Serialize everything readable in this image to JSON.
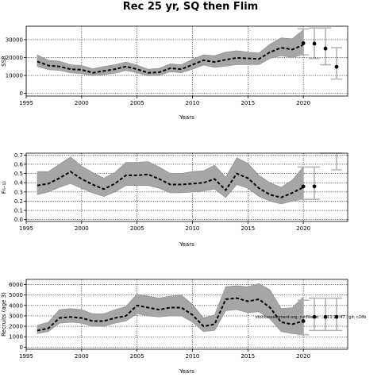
{
  "title": "Rec 25 yr, SQ then Flim",
  "chart_data": [
    {
      "type": "line",
      "ylabel": "SSB",
      "xlabel": "Years",
      "xlim": [
        1995,
        2024
      ],
      "ylim": [
        -1500,
        37500
      ],
      "xticks": [
        1995,
        2000,
        2005,
        2010,
        2015,
        2020
      ],
      "yticks": [
        0,
        10000,
        20000,
        30000
      ],
      "grid": true,
      "x": [
        1996,
        1997,
        1998,
        1999,
        2000,
        2001,
        2002,
        2003,
        2004,
        2005,
        2006,
        2007,
        2008,
        2009,
        2010,
        2011,
        2012,
        2013,
        2014,
        2015,
        2016,
        2017,
        2018,
        2019,
        2020
      ],
      "series": [
        {
          "role": "estimate",
          "values": [
            17800,
            15500,
            15000,
            13500,
            13200,
            11500,
            12500,
            13500,
            15000,
            13500,
            11500,
            11800,
            14000,
            13500,
            16000,
            18500,
            17500,
            18800,
            19800,
            19500,
            19200,
            23000,
            25500,
            24500,
            27000
          ]
        },
        {
          "role": "upper",
          "values": [
            21500,
            18500,
            18000,
            16000,
            15500,
            13800,
            15000,
            16000,
            17500,
            15800,
            13500,
            14000,
            16500,
            16000,
            19000,
            21500,
            21000,
            23000,
            23800,
            23000,
            22500,
            27500,
            31000,
            30500,
            35500
          ]
        },
        {
          "role": "lower",
          "values": [
            15000,
            13200,
            12800,
            11500,
            11000,
            9800,
            10500,
            11200,
            12800,
            11500,
            9800,
            10000,
            12000,
            11500,
            13500,
            15800,
            14500,
            15200,
            16000,
            16000,
            16000,
            19500,
            21000,
            20000,
            21500
          ]
        }
      ],
      "projection": [
        {
          "x": 2020,
          "y": 28000,
          "lo": 21500,
          "hi": 36000
        },
        {
          "x": 2021,
          "y": 27800,
          "lo": 19500,
          "hi": 36500
        },
        {
          "x": 2022,
          "y": 25000,
          "lo": 16000,
          "hi": 36500
        },
        {
          "x": 2023,
          "y": 14800,
          "lo": 8000,
          "hi": 25500
        }
      ]
    },
    {
      "type": "line",
      "ylabel": "F₆₋₁₀",
      "xlabel": "Years",
      "xlim": [
        1995,
        2024
      ],
      "ylim": [
        -0.02,
        0.72
      ],
      "xticks": [
        1995,
        2000,
        2005,
        2010,
        2015,
        2020
      ],
      "yticks": [
        0.0,
        0.1,
        0.2,
        0.3,
        0.4,
        0.5,
        0.6,
        0.7
      ],
      "grid": true,
      "x": [
        1996,
        1997,
        1998,
        1999,
        2000,
        2001,
        2002,
        2003,
        2004,
        2005,
        2006,
        2007,
        2008,
        2009,
        2010,
        2011,
        2012,
        2013,
        2014,
        2015,
        2016,
        2017,
        2018,
        2019,
        2020
      ],
      "series": [
        {
          "role": "estimate",
          "values": [
            0.37,
            0.39,
            0.45,
            0.52,
            0.44,
            0.38,
            0.33,
            0.39,
            0.48,
            0.48,
            0.49,
            0.44,
            0.38,
            0.38,
            0.39,
            0.4,
            0.44,
            0.32,
            0.5,
            0.45,
            0.34,
            0.27,
            0.24,
            0.29,
            0.35
          ]
        },
        {
          "role": "upper",
          "values": [
            0.52,
            0.52,
            0.6,
            0.68,
            0.58,
            0.51,
            0.45,
            0.51,
            0.62,
            0.62,
            0.63,
            0.57,
            0.5,
            0.5,
            0.52,
            0.53,
            0.59,
            0.46,
            0.67,
            0.61,
            0.48,
            0.4,
            0.35,
            0.43,
            0.57
          ]
        },
        {
          "role": "lower",
          "values": [
            0.27,
            0.3,
            0.35,
            0.39,
            0.34,
            0.29,
            0.25,
            0.3,
            0.37,
            0.37,
            0.37,
            0.34,
            0.29,
            0.29,
            0.3,
            0.31,
            0.33,
            0.24,
            0.38,
            0.34,
            0.25,
            0.2,
            0.17,
            0.2,
            0.22
          ]
        }
      ],
      "projection": [
        {
          "x": 2020,
          "y": 0.36,
          "lo": 0.22,
          "hi": 0.57
        },
        {
          "x": 2021,
          "y": 0.36,
          "lo": 0.22,
          "hi": 0.57
        },
        {
          "x": 2022,
          "y": null,
          "lo": null,
          "hi": 0.72
        },
        {
          "x": 2023,
          "y": null,
          "lo": 0.54,
          "hi": 0.72
        }
      ]
    },
    {
      "type": "line",
      "ylabel": "Recruits (age 3)",
      "xlabel": "Years",
      "xlim": [
        1995,
        2024
      ],
      "ylim": [
        -200,
        6500
      ],
      "xticks": [
        1995,
        2000,
        2005,
        2010,
        2015,
        2020
      ],
      "yticks": [
        0,
        1000,
        2000,
        3000,
        4000,
        5000,
        6000
      ],
      "grid": true,
      "x": [
        1996,
        1997,
        1998,
        1999,
        2000,
        2001,
        2002,
        2003,
        2004,
        2005,
        2006,
        2007,
        2008,
        2009,
        2010,
        2011,
        2012,
        2013,
        2014,
        2015,
        2016,
        2017,
        2018,
        2019,
        2020
      ],
      "series": [
        {
          "role": "estimate",
          "values": [
            1600,
            1800,
            2800,
            2900,
            2800,
            2500,
            2500,
            2800,
            3000,
            4000,
            3800,
            3600,
            3800,
            3800,
            3100,
            2000,
            2200,
            4600,
            4700,
            4400,
            4600,
            3800,
            2400,
            2200,
            2500
          ]
        },
        {
          "role": "upper",
          "values": [
            2100,
            2400,
            3600,
            3700,
            3600,
            3200,
            3200,
            3600,
            3900,
            5100,
            4900,
            4700,
            4900,
            5000,
            4100,
            2800,
            3100,
            5800,
            5900,
            5800,
            6100,
            5500,
            3700,
            3800,
            4800
          ]
        },
        {
          "role": "lower",
          "values": [
            1300,
            1500,
            2300,
            2400,
            2300,
            2000,
            2000,
            2300,
            2500,
            3200,
            3000,
            2900,
            3000,
            3000,
            2400,
            1500,
            1600,
            3500,
            3600,
            3300,
            3400,
            2700,
            1500,
            1300,
            1200
          ]
        }
      ],
      "projection": [
        {
          "x": 2020,
          "y": 2500,
          "lo": 1200,
          "hi": 4500
        },
        {
          "x": 2021,
          "y": 2900,
          "lo": 1600,
          "hi": 4700
        },
        {
          "x": 2022,
          "y": 2900,
          "lo": 1600,
          "hi": 4700
        },
        {
          "x": 2023,
          "y": 2900,
          "lo": 1600,
          "hi": 4700
        }
      ],
      "annotation": "stockassessment.org, runName: ..., 11:13:47 , git: c28b"
    }
  ],
  "style": {
    "band_color": "#a6a6a6",
    "line_color": "#000000",
    "proj_bar_color": "#b0b0b0"
  }
}
